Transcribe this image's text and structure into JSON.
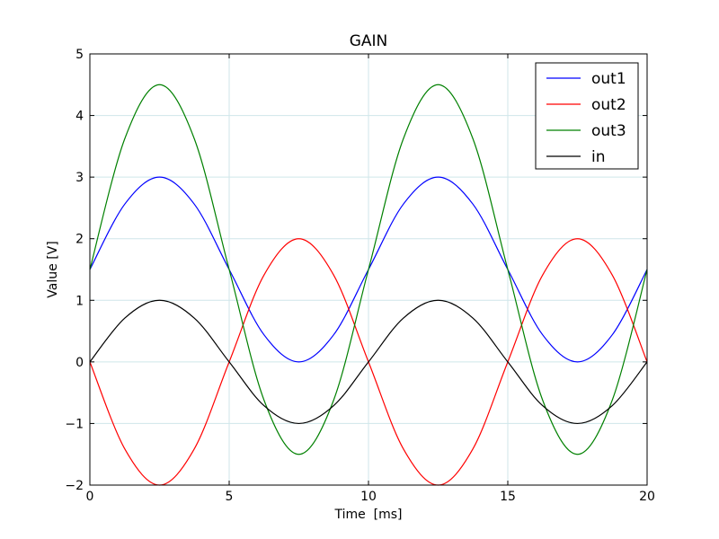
{
  "chart_data": {
    "type": "line",
    "title": "GAIN",
    "xlabel": "Time  [ms]",
    "ylabel": "Value [V]",
    "xlim": [
      0,
      20
    ],
    "ylim": [
      -2,
      5
    ],
    "x_ticks": [
      0,
      5,
      10,
      15,
      20
    ],
    "y_ticks": [
      -2,
      -1,
      0,
      1,
      2,
      3,
      4,
      5
    ],
    "x_tick_labels": [
      "0",
      "5",
      "10",
      "15",
      "20"
    ],
    "y_tick_labels": [
      "−2",
      "−1",
      "0",
      "1",
      "2",
      "3",
      "4",
      "5"
    ],
    "grid": true,
    "grid_color": "#cfe6ea",
    "legend_position": "top-right",
    "x": [
      0,
      1.25,
      2.5,
      3.75,
      5,
      6.25,
      7.5,
      8.75,
      10,
      11.25,
      12.5,
      13.75,
      15,
      16.25,
      17.5,
      18.75,
      20
    ],
    "series": [
      {
        "name": "out1",
        "color": "#0000ff",
        "values": [
          1.5,
          2.56,
          3.0,
          2.56,
          1.5,
          0.44,
          0.0,
          0.44,
          1.5,
          2.56,
          3.0,
          2.56,
          1.5,
          0.44,
          0.0,
          0.44,
          1.5
        ]
      },
      {
        "name": "out2",
        "color": "#ff0000",
        "values": [
          0.0,
          -1.41,
          -2.0,
          -1.41,
          0.0,
          1.41,
          2.0,
          1.41,
          0.0,
          -1.41,
          -2.0,
          -1.41,
          0.0,
          1.41,
          2.0,
          1.41,
          0.0
        ]
      },
      {
        "name": "out3",
        "color": "#008000",
        "values": [
          1.5,
          3.62,
          4.5,
          3.62,
          1.5,
          -0.62,
          -1.5,
          -0.62,
          1.5,
          3.62,
          4.5,
          3.62,
          1.5,
          -0.62,
          -1.5,
          -0.62,
          1.5
        ]
      },
      {
        "name": "in",
        "color": "#000000",
        "values": [
          0.0,
          0.71,
          1.0,
          0.71,
          0.0,
          -0.71,
          -1.0,
          -0.71,
          0.0,
          0.71,
          1.0,
          0.71,
          0.0,
          -0.71,
          -1.0,
          -0.71,
          0.0
        ]
      }
    ]
  }
}
